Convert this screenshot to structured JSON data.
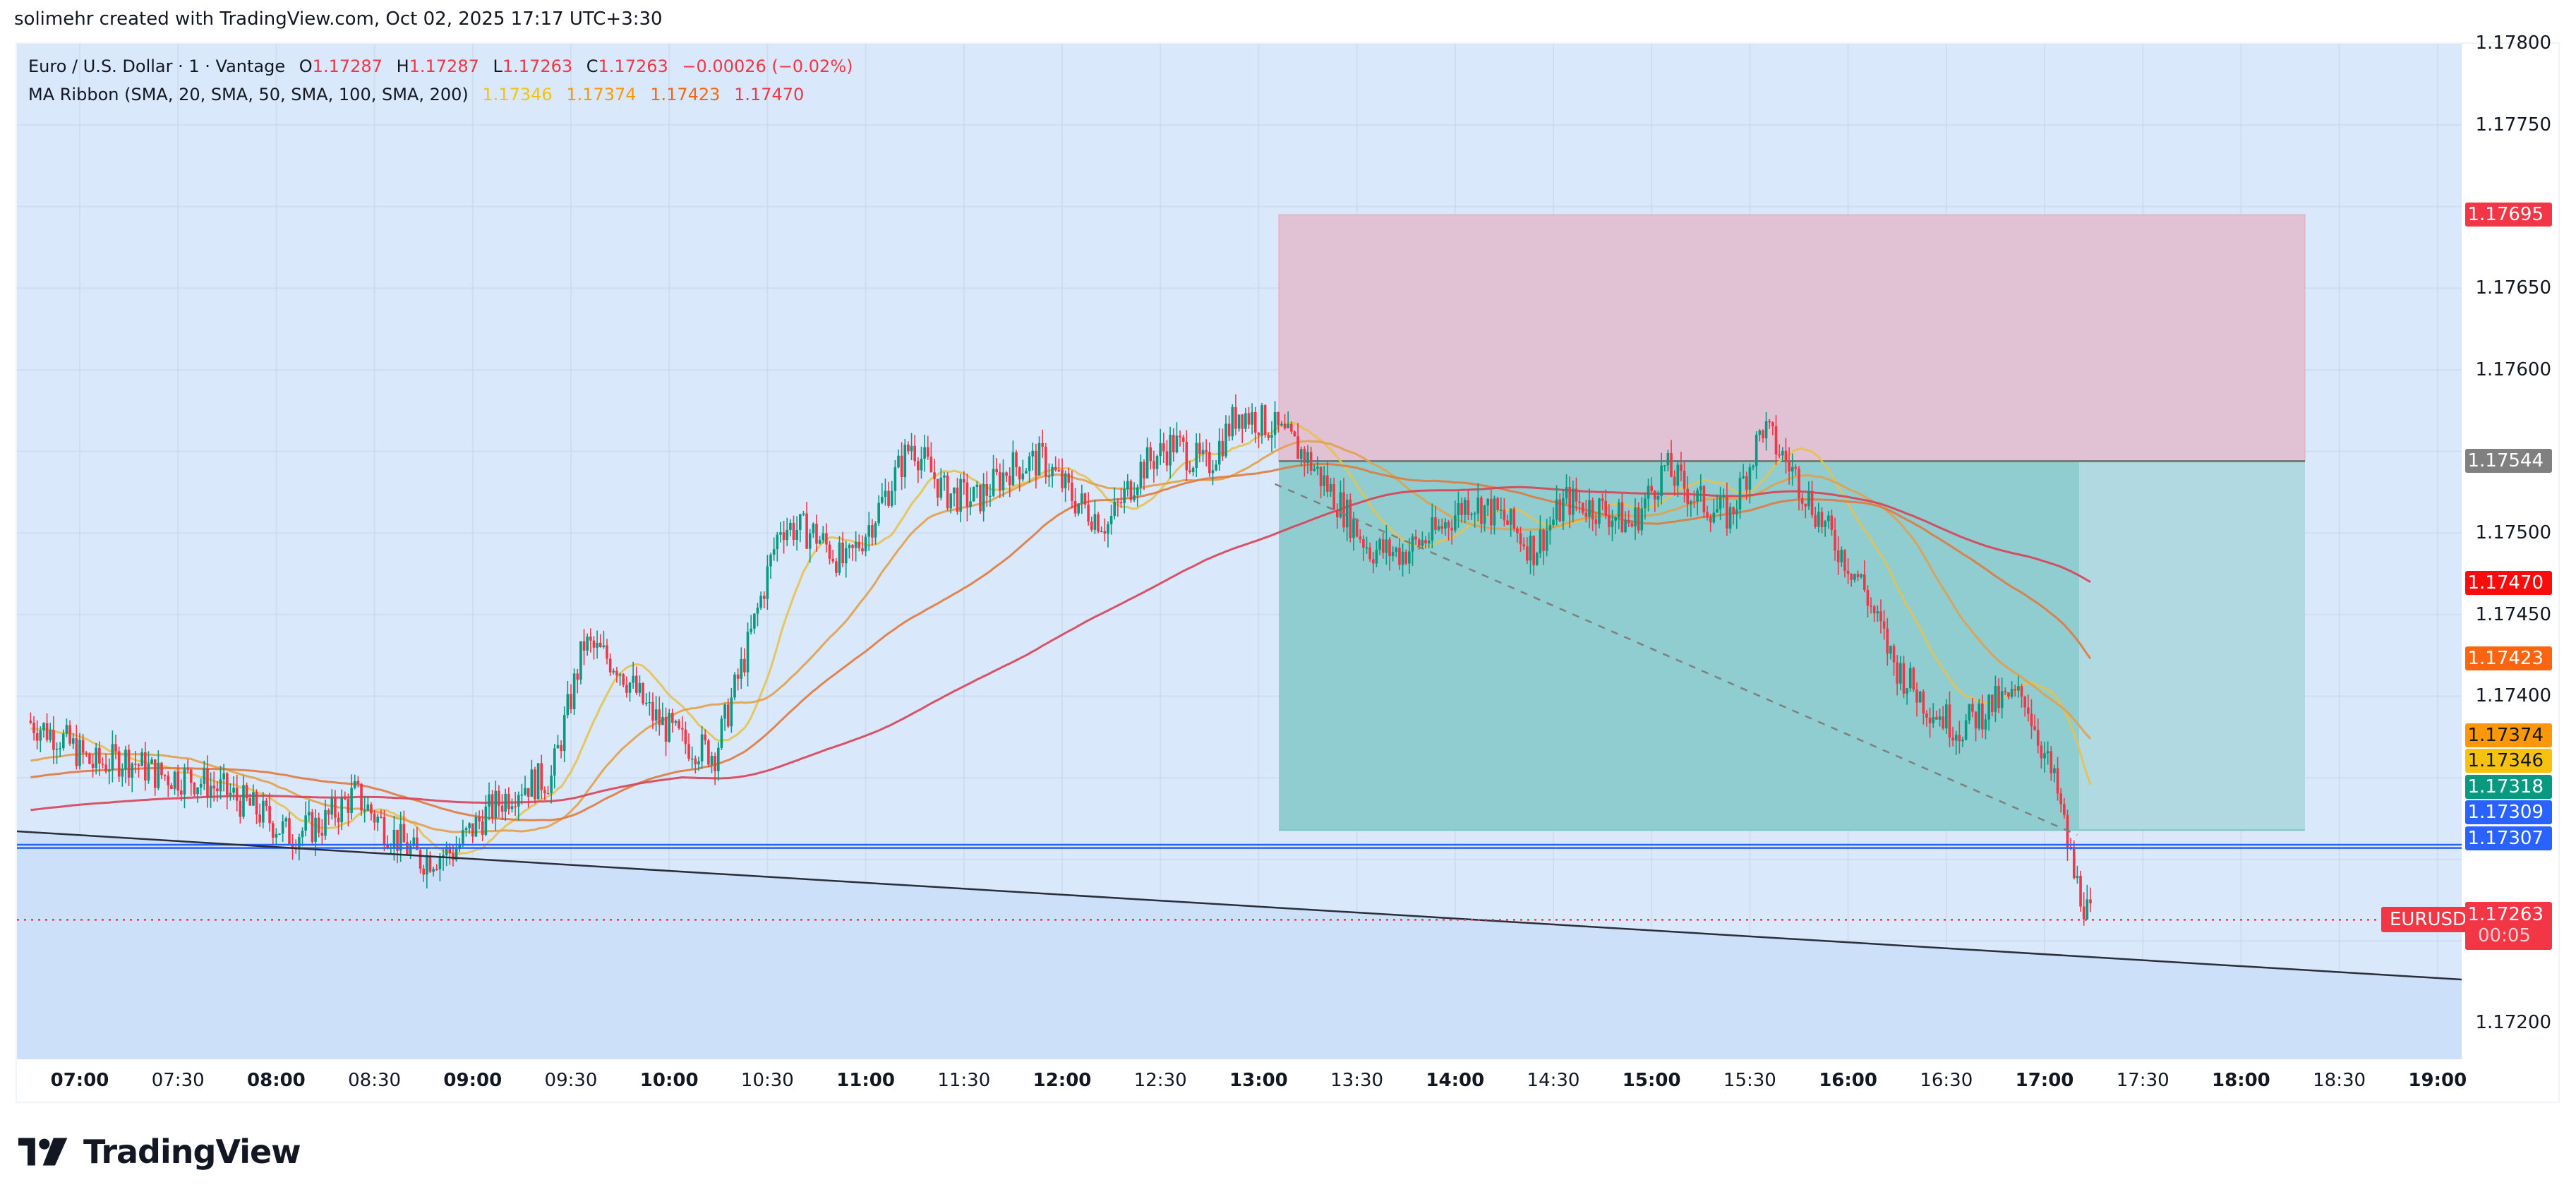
{
  "credit": "solimehr created with TradingView.com, Oct 02, 2025 17:17 UTC+3:30",
  "legend": {
    "symbol_line": "Euro / U.S. Dollar · 1 · Vantage",
    "o_label": "O",
    "o": "1.17287",
    "h_label": "H",
    "h": "1.17287",
    "l_label": "L",
    "l": "1.17263",
    "c_label": "C",
    "c": "1.17263",
    "change": "−0.00026 (−0.02%)",
    "ma_title": "MA Ribbon (SMA, 20, SMA, 50, SMA, 100, SMA, 200)",
    "ma_values": [
      "1.17346",
      "1.17374",
      "1.17423",
      "1.17470"
    ],
    "ma_colors": [
      "#f5c20f",
      "#fb9708",
      "#fa6610",
      "#f23645"
    ]
  },
  "price_axis": {
    "ticks": [
      "1.17800",
      "1.17750",
      "1.17700",
      "1.17650",
      "1.17600",
      "1.17550",
      "1.17500",
      "1.17450",
      "1.17400",
      "1.17350",
      "1.17300",
      "1.17250",
      "1.17200"
    ],
    "visible_ticks": [
      "1.17800",
      "1.17750",
      "1.17650",
      "1.17600",
      "1.17500",
      "1.17450",
      "1.17400",
      "1.17200"
    ],
    "badges": [
      {
        "value": "1.17695",
        "color": "#f23645",
        "text": "#ffffff",
        "role": "stop-loss"
      },
      {
        "value": "1.17544",
        "color": "#808080",
        "text": "#ffffff",
        "role": "entry"
      },
      {
        "value": "1.17470",
        "color": "#f80c0c",
        "text": "#ffffff",
        "role": "sma-200"
      },
      {
        "value": "1.17423",
        "color": "#fb6410",
        "text": "#ffffff",
        "role": "sma-100"
      },
      {
        "value": "1.17374",
        "color": "#fb9708",
        "text": "#131722",
        "role": "sma-50"
      },
      {
        "value": "1.17346",
        "color": "#f5c20f",
        "text": "#131722",
        "role": "sma-20"
      },
      {
        "value": "1.17318",
        "color": "#089981",
        "text": "#ffffff",
        "role": "take-profit"
      },
      {
        "value": "1.17309",
        "color": "#2962ff",
        "text": "#ffffff",
        "role": "horizontal-line-1"
      },
      {
        "value": "1.17307",
        "color": "#2962ff",
        "text": "#ffffff",
        "role": "horizontal-line-2"
      }
    ],
    "last_price": {
      "symbol": "EURUSD",
      "value": "1.17263",
      "countdown": "00:05",
      "color": "#f23645"
    }
  },
  "time_axis": {
    "ticks": [
      "07:00",
      "07:30",
      "08:00",
      "08:30",
      "09:00",
      "09:30",
      "10:00",
      "10:30",
      "11:00",
      "11:30",
      "12:00",
      "12:30",
      "13:00",
      "13:30",
      "14:00",
      "14:30",
      "15:00",
      "15:30",
      "16:00",
      "16:30",
      "17:00",
      "17:30",
      "18:00",
      "18:30",
      "19:00"
    ]
  },
  "logo": {
    "text": "TradingView"
  },
  "chart_data": {
    "type": "candlestick",
    "title": "Euro / U.S. Dollar · 1 · Vantage",
    "symbol": "EURUSD",
    "timeframe": "1m",
    "ylim": [
      1.17172,
      1.178
    ],
    "xlabel": "",
    "ylabel": "",
    "grid": true,
    "ohlc_last": {
      "open": 1.17287,
      "high": 1.17287,
      "low": 1.17263,
      "close": 1.17263,
      "change": -0.00026,
      "change_pct": -0.02
    },
    "price_path": {
      "description": "Approximate close path sampled every 10 minutes from 06:45 to 17:15",
      "x": [
        "06:45",
        "06:55",
        "07:05",
        "07:15",
        "07:25",
        "07:35",
        "07:45",
        "07:55",
        "08:05",
        "08:15",
        "08:25",
        "08:35",
        "08:45",
        "08:55",
        "09:05",
        "09:15",
        "09:25",
        "09:35",
        "09:45",
        "09:55",
        "10:05",
        "10:15",
        "10:25",
        "10:35",
        "10:45",
        "10:55",
        "11:05",
        "11:15",
        "11:25",
        "11:35",
        "11:45",
        "11:55",
        "12:05",
        "12:15",
        "12:25",
        "12:35",
        "12:45",
        "12:55",
        "13:05",
        "13:15",
        "13:25",
        "13:35",
        "13:45",
        "13:55",
        "14:05",
        "14:15",
        "14:25",
        "14:35",
        "14:45",
        "14:55",
        "15:05",
        "15:15",
        "15:25",
        "15:35",
        "15:45",
        "15:55",
        "16:05",
        "16:15",
        "16:25",
        "16:35",
        "16:45",
        "16:55",
        "17:05",
        "17:10",
        "17:15"
      ],
      "values": [
        1.17385,
        1.17375,
        1.17358,
        1.17362,
        1.17352,
        1.1735,
        1.17342,
        1.1733,
        1.17315,
        1.17322,
        1.1734,
        1.17318,
        1.173,
        1.17305,
        1.17328,
        1.17345,
        1.1735,
        1.17432,
        1.1742,
        1.1739,
        1.17372,
        1.17365,
        1.1743,
        1.17505,
        1.175,
        1.1748,
        1.17515,
        1.17555,
        1.17525,
        1.1752,
        1.1754,
        1.17545,
        1.1752,
        1.17505,
        1.1754,
        1.17555,
        1.1754,
        1.17575,
        1.17565,
        1.17548,
        1.1752,
        1.1749,
        1.17488,
        1.175,
        1.1752,
        1.1751,
        1.1749,
        1.1752,
        1.17515,
        1.17505,
        1.1754,
        1.1752,
        1.1751,
        1.17565,
        1.17535,
        1.175,
        1.1747,
        1.1742,
        1.17395,
        1.1738,
        1.17395,
        1.174,
        1.1734,
        1.1729,
        1.17263
      ]
    },
    "series": [
      {
        "name": "SMA 20",
        "color": "#e6c24f",
        "last": 1.17346
      },
      {
        "name": "SMA 50",
        "color": "#e3a04a",
        "last": 1.17374
      },
      {
        "name": "SMA 100",
        "color": "#e07a3e",
        "last": 1.17423
      },
      {
        "name": "SMA 200",
        "color": "#d94155",
        "last": 1.1747
      }
    ],
    "drawings": {
      "short_position": {
        "start": "13:00",
        "end": "18:30",
        "entry": 1.17544,
        "stop": 1.17695,
        "target": 1.17318,
        "filled_until": "17:12"
      },
      "horizontal_lines": [
        1.17309,
        1.17307
      ],
      "trendline": {
        "from": [
          "06:45",
          1.17318
        ],
        "to": [
          "19:15",
          1.17228
        ],
        "below_fill": "#cce0fb"
      },
      "dashed_line": {
        "from": [
          "13:05",
          1.1753
        ],
        "to": [
          "17:10",
          1.17315
        ]
      }
    },
    "legend_position": "top-left"
  }
}
